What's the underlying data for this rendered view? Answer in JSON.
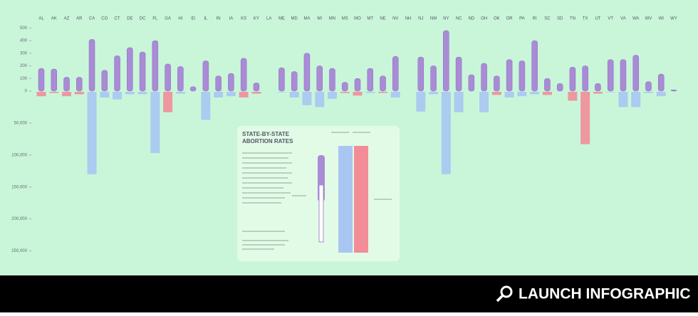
{
  "chart_data": {
    "type": "syringe-bar",
    "categories": [
      "AL",
      "AK",
      "AZ",
      "AR",
      "CA",
      "CO",
      "CT",
      "DE",
      "DC",
      "FL",
      "GA",
      "HI",
      "ID",
      "IL",
      "IN",
      "IA",
      "KS",
      "KY",
      "LA",
      "ME",
      "MD",
      "MA",
      "MI",
      "MN",
      "MS",
      "MO",
      "MT",
      "NE",
      "NV",
      "NH",
      "NJ",
      "NM",
      "NY",
      "NC",
      "ND",
      "OH",
      "OK",
      "OR",
      "PA",
      "RI",
      "SC",
      "SD",
      "TN",
      "TX",
      "UT",
      "VT",
      "VA",
      "WA",
      "WV",
      "WI",
      "WY"
    ],
    "ylim": [
      0,
      525
    ],
    "yticks": [
      0,
      100,
      200,
      300,
      400,
      500
    ],
    "y2lim": [
      0,
      275000
    ],
    "y2ticks": [
      {
        "value": 50000,
        "label": "50,000"
      },
      {
        "value": 100000,
        "label": "100,000"
      },
      {
        "value": 150000,
        "label": "150,000"
      },
      {
        "value": 200000,
        "label": "200,000"
      },
      {
        "value": 250000,
        "label": "250,000"
      }
    ],
    "series": [
      {
        "color": "#a98bd6",
        "values": [
          180,
          175,
          110,
          110,
          410,
          165,
          280,
          345,
          310,
          400,
          215,
          195,
          35,
          240,
          120,
          140,
          260,
          65,
          null,
          185,
          155,
          300,
          200,
          180,
          70,
          100,
          180,
          120,
          275,
          null,
          270,
          200,
          480,
          270,
          130,
          220,
          120,
          250,
          240,
          400,
          100,
          60,
          190,
          200,
          60,
          250,
          250,
          285,
          75,
          135,
          10
        ]
      },
      {
        "color": "#a9c6f3",
        "axis": "y2",
        "values": [
          null,
          null,
          null,
          null,
          130000,
          10000,
          13000,
          5000,
          5000,
          97000,
          null,
          4000,
          null,
          45000,
          10000,
          8000,
          null,
          null,
          null,
          2000,
          10000,
          22000,
          25000,
          12000,
          null,
          null,
          3000,
          null,
          10000,
          null,
          32000,
          5000,
          130000,
          33000,
          null,
          33000,
          null,
          10000,
          8000,
          5000,
          null,
          null,
          null,
          null,
          null,
          2000,
          25000,
          25000,
          3000,
          8000,
          null
        ]
      },
      {
        "color": "#f28d98",
        "axis": "y2",
        "values": [
          8000,
          3000,
          8000,
          5000,
          null,
          null,
          null,
          null,
          null,
          null,
          33000,
          null,
          1000,
          null,
          null,
          null,
          10000,
          4000,
          null,
          null,
          null,
          null,
          null,
          null,
          3000,
          7000,
          null,
          3000,
          null,
          null,
          null,
          null,
          null,
          null,
          1000,
          null,
          6000,
          null,
          null,
          null,
          6000,
          1000,
          15000,
          83000,
          4000,
          null,
          null,
          null,
          null,
          null,
          1000
        ]
      }
    ]
  },
  "card": {
    "title": [
      "STATE-BY-STATE",
      "ABORTION RATES"
    ]
  },
  "footer": {
    "button": "LAUNCH INFOGRAPHIC"
  }
}
